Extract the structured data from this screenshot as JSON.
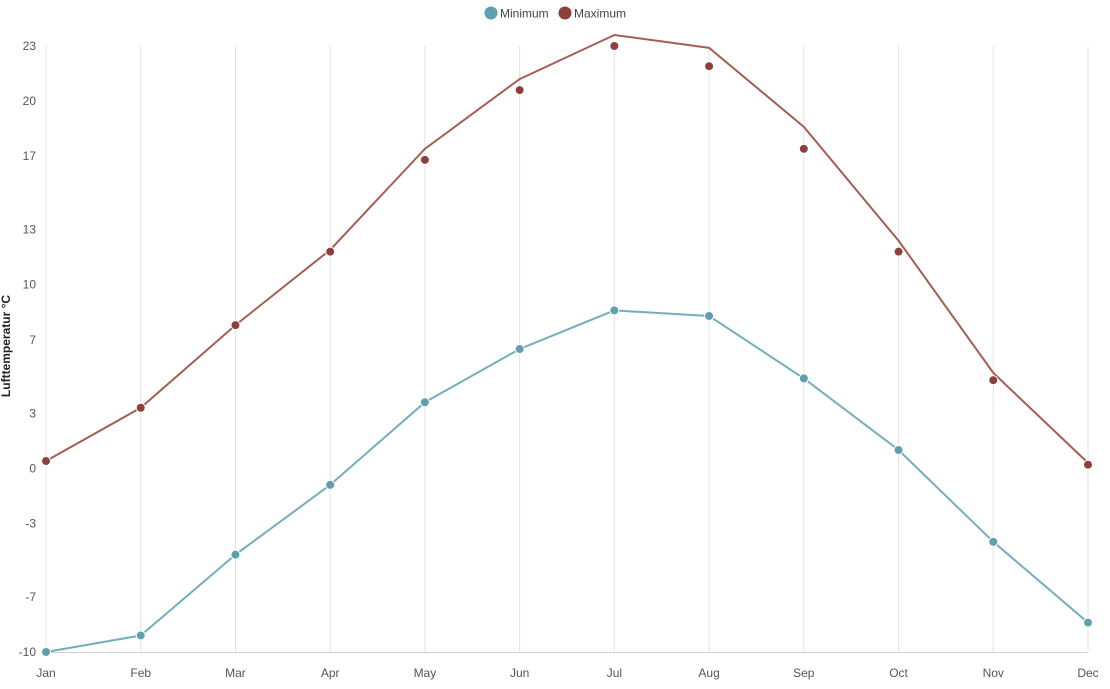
{
  "chart_data": {
    "type": "line",
    "categories": [
      "Jan",
      "Feb",
      "Mar",
      "Apr",
      "May",
      "Jun",
      "Jul",
      "Aug",
      "Sep",
      "Oct",
      "Nov",
      "Dec"
    ],
    "ylabel": "Lufttemperatur °C",
    "ylim": [
      -10,
      23
    ],
    "yticks": [
      -10,
      -7,
      -3,
      0,
      3,
      7,
      10,
      13,
      17,
      20,
      23
    ],
    "grid": "vertical",
    "legend_position": "top-center",
    "series": [
      {
        "name": "Minimum",
        "color": "#5f9fb0",
        "line_color": "#72aebb",
        "line_values": [
          -10.0,
          -9.1,
          -4.7,
          -0.9,
          3.6,
          6.5,
          8.6,
          8.3,
          4.9,
          1.0,
          -4.0,
          -8.4
        ],
        "point_values": [
          -10.0,
          -9.1,
          -4.7,
          -0.9,
          3.6,
          6.5,
          8.6,
          8.3,
          4.9,
          1.0,
          -4.0,
          -8.4
        ]
      },
      {
        "name": "Maximum",
        "color": "#8e3f3a",
        "line_color": "#a55e52",
        "line_values": [
          0.4,
          3.3,
          7.8,
          11.9,
          17.4,
          21.2,
          23.6,
          22.9,
          18.6,
          12.4,
          5.2,
          0.3
        ],
        "point_values": [
          0.4,
          3.3,
          7.8,
          11.8,
          16.8,
          20.6,
          23.0,
          21.9,
          17.4,
          11.8,
          4.8,
          0.2
        ]
      }
    ]
  }
}
